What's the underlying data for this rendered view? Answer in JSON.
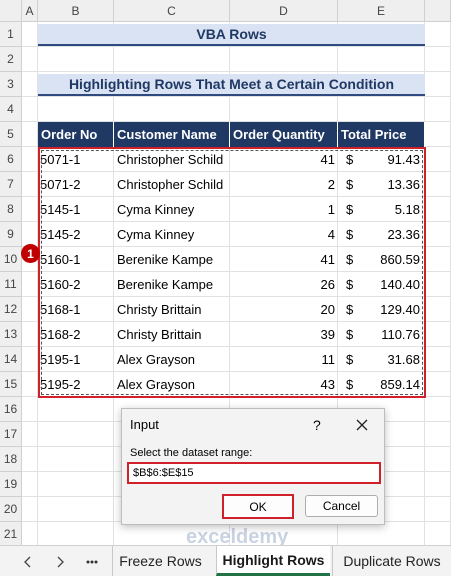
{
  "sheet": {
    "columns": [
      "A",
      "B",
      "C",
      "D",
      "E"
    ],
    "row_numbers": [
      1,
      2,
      3,
      4,
      5,
      6,
      7,
      8,
      9,
      10,
      11,
      12,
      13,
      14,
      15,
      16,
      17,
      18,
      19,
      20,
      21
    ],
    "title": "VBA Rows",
    "subtitle": "Highlighting Rows That Meet a Certain Condition",
    "headers": [
      "Order No",
      "Customer Name",
      "Order Quantity",
      "Total Price"
    ],
    "rows": [
      [
        "5071-1",
        "Christopher Schild",
        "41",
        "$",
        "91.43"
      ],
      [
        "5071-2",
        "Christopher Schild",
        "2",
        "$",
        "13.36"
      ],
      [
        "5145-1",
        "Cyma Kinney",
        "1",
        "$",
        "5.18"
      ],
      [
        "5145-2",
        "Cyma Kinney",
        "4",
        "$",
        "23.36"
      ],
      [
        "5160-1",
        "Berenike Kampe",
        "41",
        "$",
        "860.59"
      ],
      [
        "5160-2",
        "Berenike Kampe",
        "26",
        "$",
        "140.40"
      ],
      [
        "5168-1",
        "Christy Brittain",
        "20",
        "$",
        "129.40"
      ],
      [
        "5168-2",
        "Christy Brittain",
        "39",
        "$",
        "110.76"
      ],
      [
        "5195-1",
        "Alex Grayson",
        "11",
        "$",
        "31.68"
      ],
      [
        "5195-2",
        "Alex Grayson",
        "43",
        "$",
        "859.14"
      ]
    ],
    "marker": "1"
  },
  "dialog": {
    "title": "Input",
    "help": "?",
    "prompt": "Select the dataset range:",
    "input": "$B$6:$E$15",
    "ok": "OK",
    "cancel": "Cancel"
  },
  "watermark": "exceldemy",
  "tabs": [
    "Freeze Rows",
    "Highlight Rows",
    "Duplicate Rows"
  ],
  "active_tab": 1
}
